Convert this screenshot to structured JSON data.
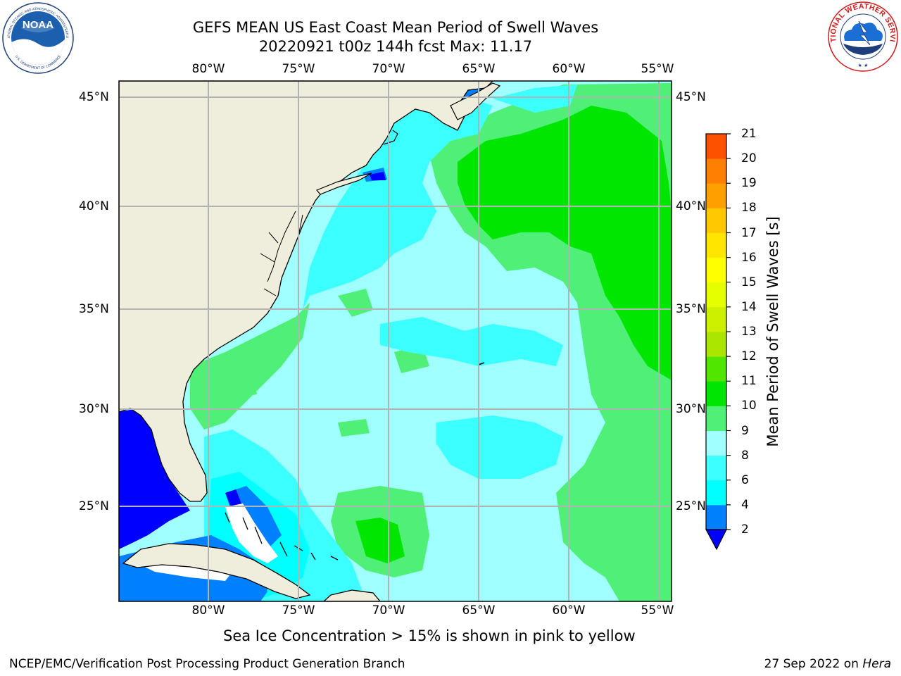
{
  "header": {
    "title": "GEFS MEAN US East Coast Mean Period of Swell Waves",
    "subtitle": "20220921 t00z 144h fcst   Max: 11.17"
  },
  "logos": {
    "noaa_text": "NOAA",
    "noaa_ring_top": "NATIONAL OCEANIC AND ATMOSPHERIC ADMINISTRATION",
    "noaa_ring_bottom": "U.S. DEPARTMENT OF COMMERCE",
    "nws_ring": "NATIONAL WEATHER SERVICE"
  },
  "map": {
    "lon_labels": [
      "80°W",
      "75°W",
      "70°W",
      "65°W",
      "60°W",
      "55°W"
    ],
    "lat_labels": [
      "45°N",
      "40°N",
      "35°N",
      "30°N",
      "25°N"
    ],
    "colors": {
      "land": "#efeedc",
      "grid": "#b3b3b3",
      "ice_free_white": "#ffffff"
    }
  },
  "colorbar": {
    "label": "Mean Period of Swell Waves [s]",
    "ticks": [
      "2",
      "4",
      "6",
      "8",
      "9",
      "10",
      "11",
      "12",
      "13",
      "14",
      "15",
      "16",
      "17",
      "18",
      "19",
      "20",
      "21"
    ],
    "under_color": "#0000ff",
    "colors": [
      "#0080ff",
      "#00ffff",
      "#3cffff",
      "#a0ffff",
      "#50f078",
      "#00e600",
      "#50e600",
      "#aae600",
      "#ccf000",
      "#e6ff00",
      "#ffff00",
      "#ffe600",
      "#ffc800",
      "#ffa000",
      "#ff8000",
      "#ff5000",
      "#ff0000"
    ]
  },
  "footer": {
    "note": "Sea Ice Concentration > 15% is shown in pink to yellow",
    "left": "NCEP/EMC/Verification Post Processing Product Generation Branch",
    "date": "27 Sep 2022 on ",
    "machine": "Hera"
  }
}
